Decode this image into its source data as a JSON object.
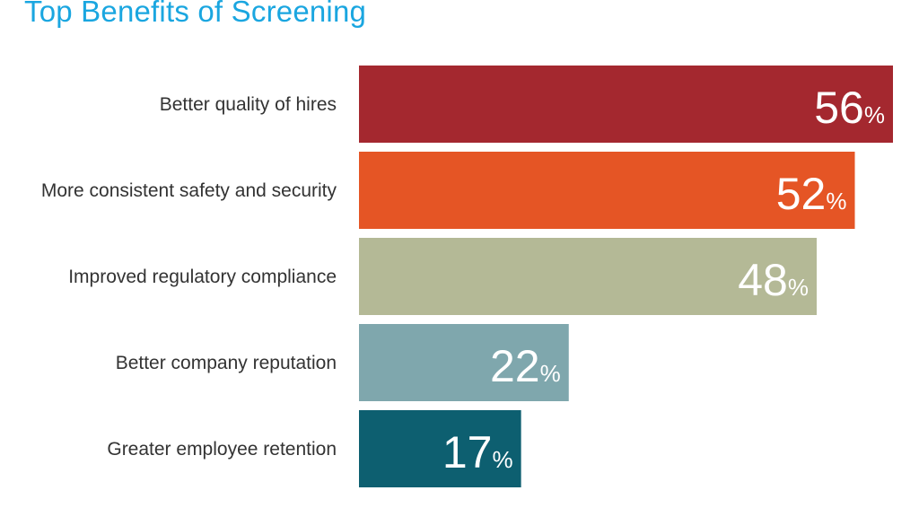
{
  "chart_data": {
    "type": "bar",
    "orientation": "horizontal",
    "title": "Top Benefits of Screening",
    "categories": [
      "Better quality of hires",
      "More consistent safety and security",
      "Improved regulatory compliance",
      "Better company reputation",
      "Greater employee retention"
    ],
    "values": [
      56,
      52,
      48,
      22,
      17
    ],
    "unit": "%",
    "colors": [
      "#a4282f",
      "#e55525",
      "#b4b996",
      "#7fa7ad",
      "#0d5f70"
    ],
    "xlim": [
      0,
      56
    ],
    "grid": false,
    "legend": "none"
  }
}
